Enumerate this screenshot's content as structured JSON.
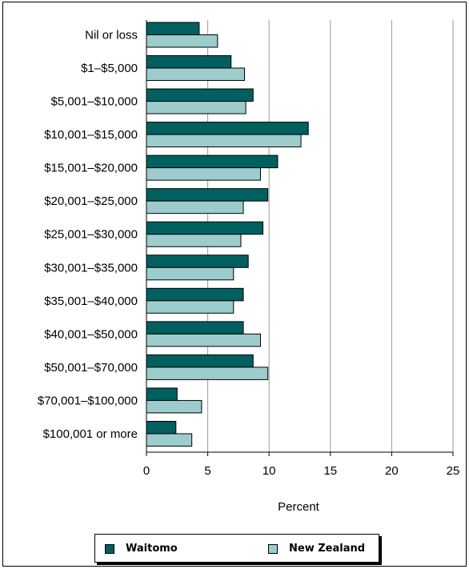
{
  "chart_data": {
    "type": "bar",
    "orientation": "horizontal",
    "categories": [
      "Nil or loss",
      "$1–$5,000",
      "$5,001–$10,000",
      "$10,001–$15,000",
      "$15,001–$20,000",
      "$20,001–$25,000",
      "$25,001–$30,000",
      "$30,001–$35,000",
      "$35,001–$40,000",
      "$40,001–$50,000",
      "$50,001–$70,000",
      "$70,001–$100,000",
      "$100,001 or more"
    ],
    "series": [
      {
        "name": "Waitomo",
        "color": "#006060",
        "values": [
          4.3,
          6.9,
          8.7,
          13.2,
          10.7,
          9.9,
          9.5,
          8.3,
          7.9,
          7.9,
          8.7,
          2.5,
          2.4
        ]
      },
      {
        "name": "New Zealand",
        "color": "#9ccccc",
        "values": [
          5.8,
          8.0,
          8.1,
          12.6,
          9.3,
          7.9,
          7.7,
          7.1,
          7.1,
          9.3,
          9.9,
          4.5,
          3.7
        ]
      }
    ],
    "xlabel": "Percent",
    "ylabel": "",
    "xlim": [
      0,
      25
    ],
    "xticks": [
      "0",
      "5",
      "10",
      "15",
      "20",
      "25"
    ],
    "grid": true,
    "legend_position": "bottom"
  }
}
